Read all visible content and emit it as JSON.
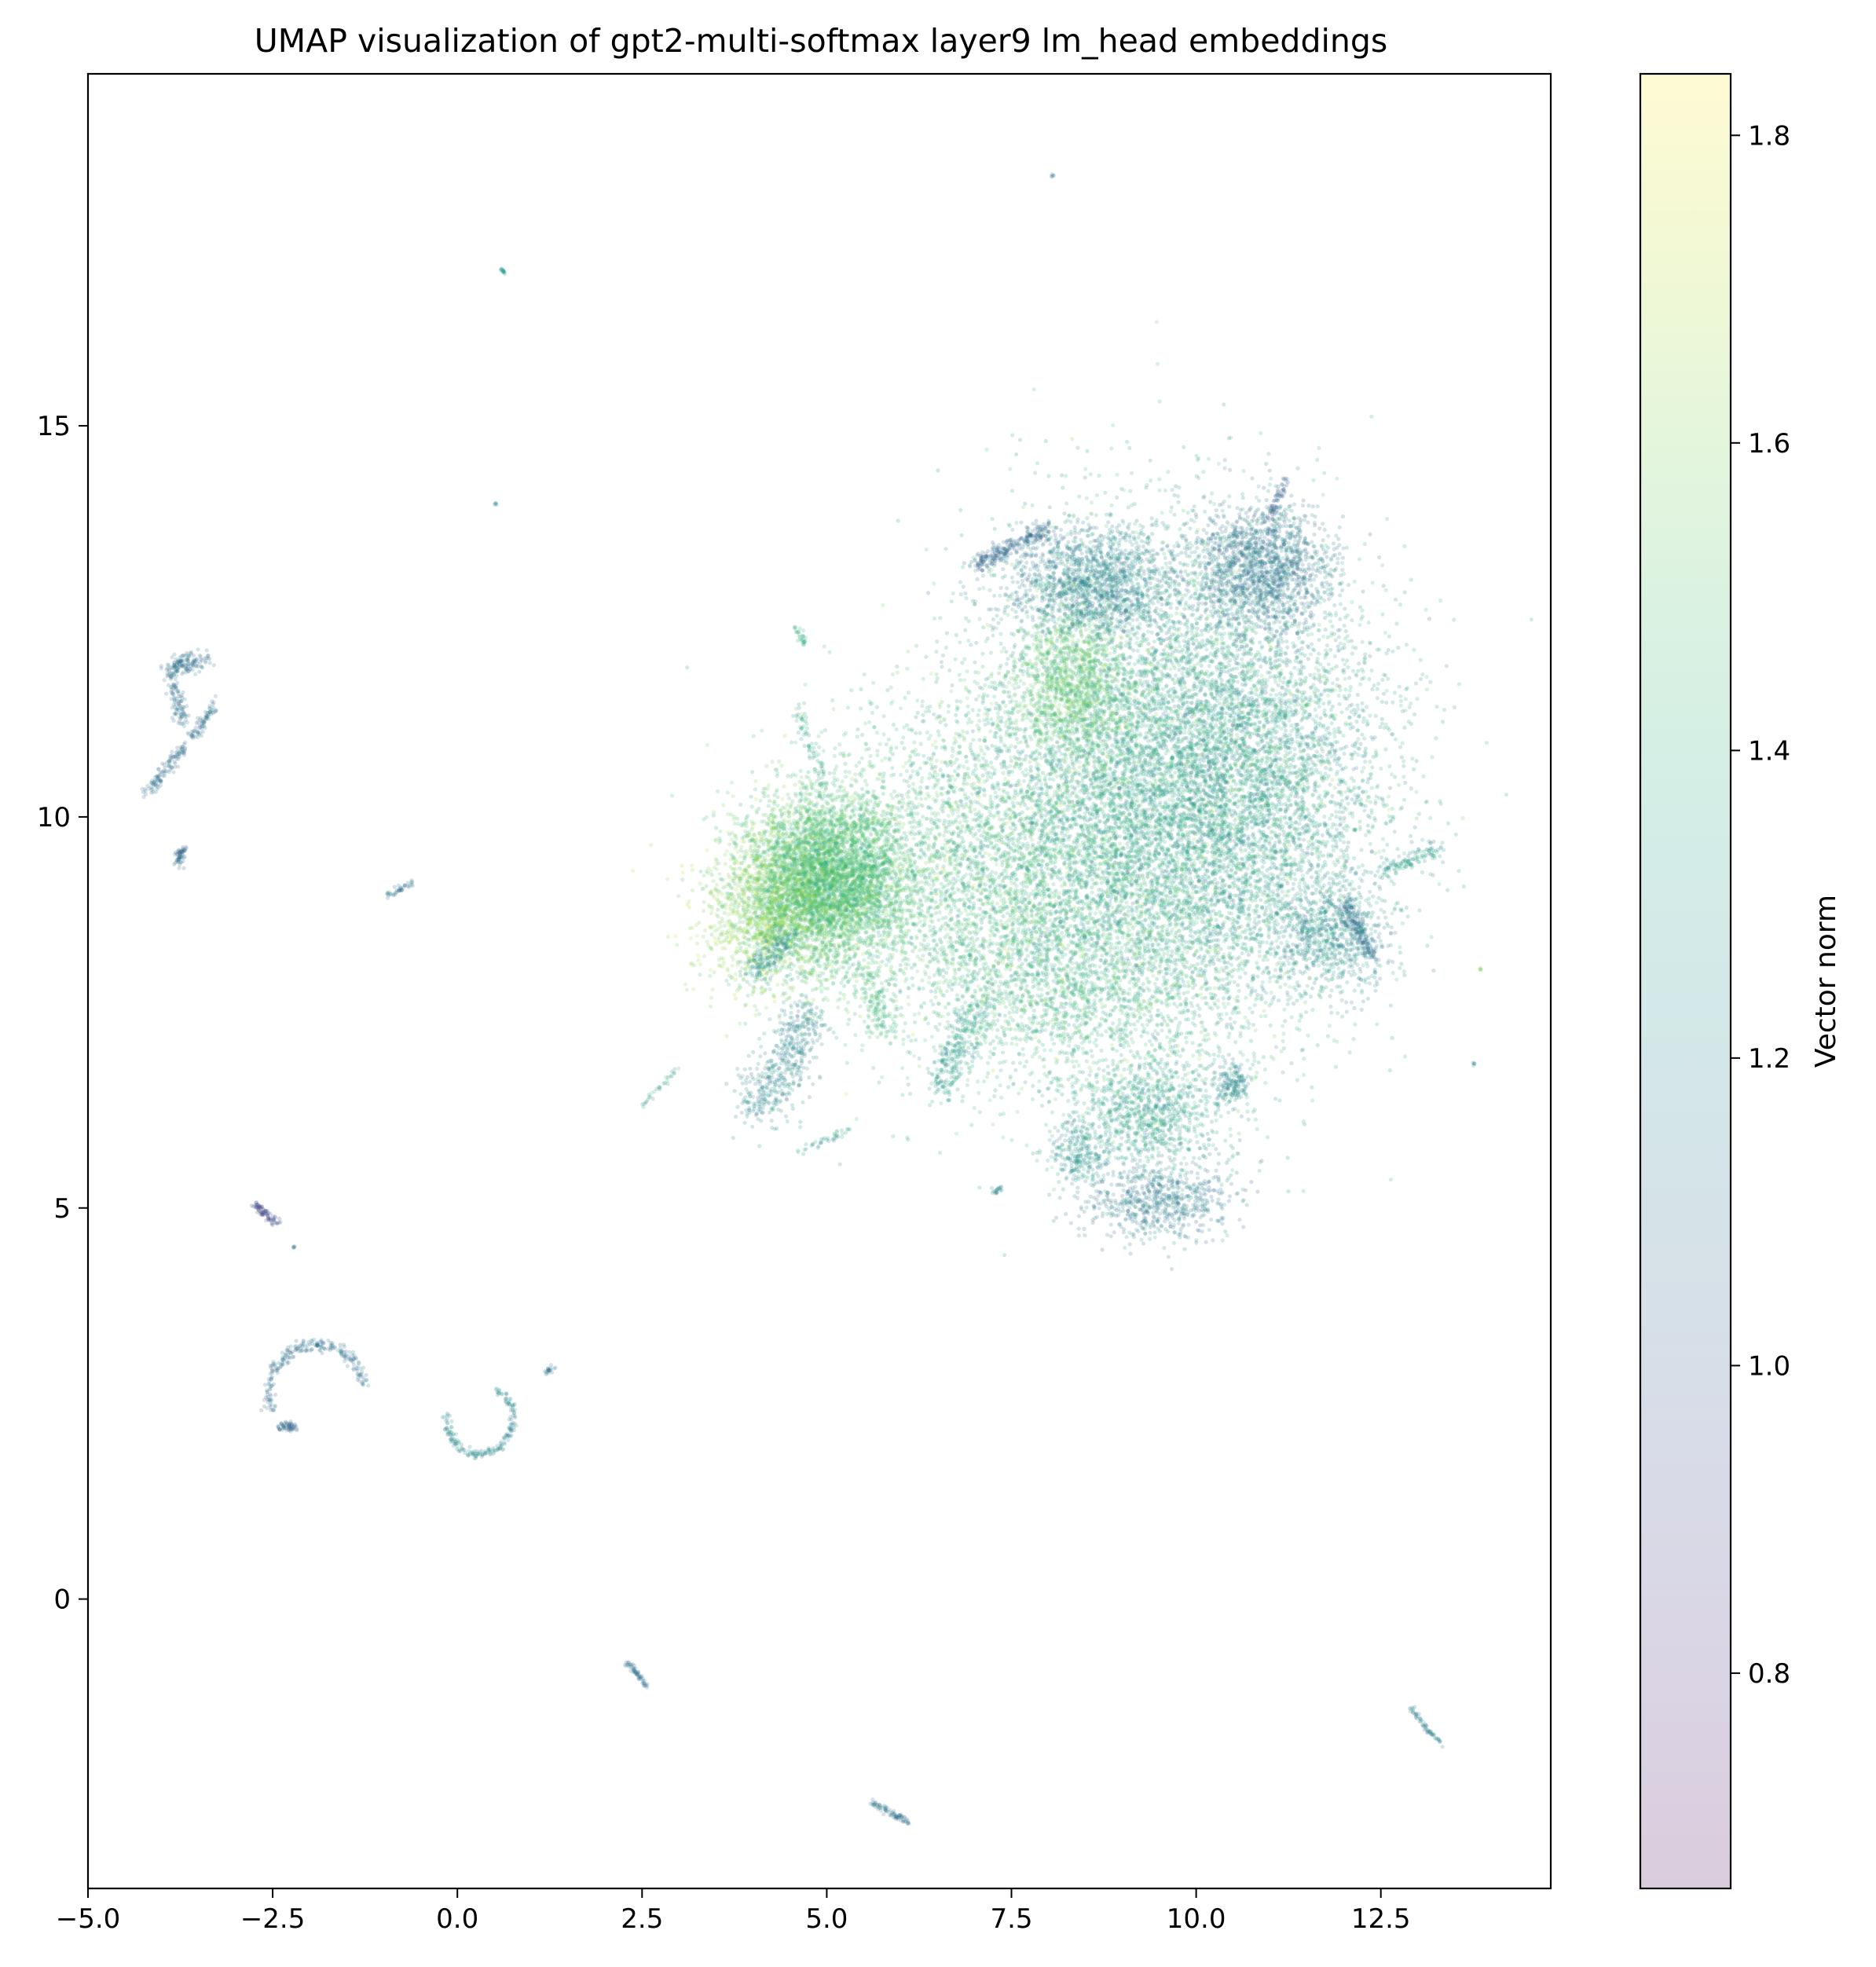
{
  "chart_data": {
    "type": "scatter",
    "title": "UMAP visualization of gpt2-multi-softmax layer9 lm_head embeddings",
    "xlabel": "",
    "ylabel": "",
    "xlim": [
      -5.0,
      14.8
    ],
    "ylim": [
      -3.7,
      19.5
    ],
    "x_ticks": [
      -5.0,
      -2.5,
      0.0,
      2.5,
      5.0,
      7.5,
      10.0,
      12.5
    ],
    "x_tick_labels": [
      "−5.0",
      "−2.5",
      "0.0",
      "2.5",
      "5.0",
      "7.5",
      "10.0",
      "12.5"
    ],
    "y_ticks": [
      0,
      5,
      10,
      15
    ],
    "y_tick_labels": [
      "0",
      "5",
      "10",
      "15"
    ],
    "grid": false,
    "point_alpha": 0.2,
    "colormap": "viridis",
    "colorbar": {
      "label": "Vector norm",
      "range": [
        0.66,
        1.84
      ],
      "ticks": [
        0.8,
        1.0,
        1.2,
        1.4,
        1.6,
        1.8
      ],
      "tick_labels": [
        "0.8",
        "1.0",
        "1.2",
        "1.4",
        "1.6",
        "1.8"
      ],
      "alpha": 0.2
    },
    "clusters": [
      {
        "kind": "blob",
        "cx": 5.0,
        "cy": 9.2,
        "sx": 0.55,
        "sy": 0.55,
        "n": 5000,
        "norm": 1.48,
        "norm_sd": 0.08
      },
      {
        "kind": "blob",
        "cx": 4.2,
        "cy": 8.8,
        "sx": 0.45,
        "sy": 0.55,
        "n": 1200,
        "norm": 1.62,
        "norm_sd": 0.06
      },
      {
        "kind": "blob",
        "cx": 6.8,
        "cy": 9.3,
        "sx": 1.1,
        "sy": 1.0,
        "n": 2500,
        "norm": 1.45,
        "norm_sd": 0.1
      },
      {
        "kind": "blob",
        "cx": 9.3,
        "cy": 10.2,
        "sx": 1.3,
        "sy": 1.6,
        "n": 8000,
        "norm": 1.35,
        "norm_sd": 0.12
      },
      {
        "kind": "blob",
        "cx": 10.6,
        "cy": 10.6,
        "sx": 1.0,
        "sy": 1.3,
        "n": 4000,
        "norm": 1.3,
        "norm_sd": 0.12
      },
      {
        "kind": "blob",
        "cx": 8.3,
        "cy": 11.7,
        "sx": 0.4,
        "sy": 0.5,
        "n": 1200,
        "norm": 1.52,
        "norm_sd": 0.06
      },
      {
        "kind": "blob",
        "cx": 8.6,
        "cy": 13.0,
        "sx": 0.6,
        "sy": 0.35,
        "n": 1500,
        "norm": 1.18,
        "norm_sd": 0.08
      },
      {
        "kind": "blob",
        "cx": 10.9,
        "cy": 13.2,
        "sx": 0.45,
        "sy": 0.4,
        "n": 1500,
        "norm": 1.12,
        "norm_sd": 0.07
      },
      {
        "kind": "blob",
        "cx": 9.4,
        "cy": 6.2,
        "sx": 0.5,
        "sy": 0.35,
        "n": 900,
        "norm": 1.32,
        "norm_sd": 0.1
      },
      {
        "kind": "blob",
        "cx": 9.5,
        "cy": 5.1,
        "sx": 0.5,
        "sy": 0.25,
        "n": 700,
        "norm": 1.15,
        "norm_sd": 0.08
      },
      {
        "kind": "blob",
        "cx": 11.8,
        "cy": 8.5,
        "sx": 0.4,
        "sy": 0.35,
        "n": 700,
        "norm": 1.22,
        "norm_sd": 0.1
      },
      {
        "kind": "blob",
        "cx": 8.4,
        "cy": 5.7,
        "sx": 0.2,
        "sy": 0.2,
        "n": 250,
        "norm": 1.25,
        "norm_sd": 0.08
      },
      {
        "kind": "blob",
        "cx": 10.5,
        "cy": 6.6,
        "sx": 0.12,
        "sy": 0.12,
        "n": 150,
        "norm": 1.2,
        "norm_sd": 0.05
      },
      {
        "kind": "blob",
        "cx": 8.5,
        "cy": 8.0,
        "sx": 1.2,
        "sy": 0.8,
        "n": 2000,
        "norm": 1.42,
        "norm_sd": 0.1
      },
      {
        "kind": "line",
        "x1": 4.8,
        "y1": 7.5,
        "x2": 4.0,
        "y2": 6.2,
        "n": 500,
        "w": 0.18,
        "norm": 1.2,
        "norm_sd": 0.08
      },
      {
        "kind": "line",
        "x1": 4.5,
        "y1": 8.5,
        "x2": 4.0,
        "y2": 8.0,
        "n": 200,
        "w": 0.1,
        "norm": 1.25,
        "norm_sd": 0.08
      },
      {
        "kind": "line",
        "x1": 7.1,
        "y1": 7.6,
        "x2": 6.5,
        "y2": 6.5,
        "n": 300,
        "w": 0.12,
        "norm": 1.3,
        "norm_sd": 0.08
      },
      {
        "kind": "line",
        "x1": 5.6,
        "y1": 7.9,
        "x2": 5.8,
        "y2": 7.2,
        "n": 150,
        "w": 0.12,
        "norm": 1.45,
        "norm_sd": 0.06
      },
      {
        "kind": "line",
        "x1": 12.0,
        "y1": 8.9,
        "x2": 12.4,
        "y2": 8.2,
        "n": 200,
        "w": 0.06,
        "norm": 1.1,
        "norm_sd": 0.06
      },
      {
        "kind": "line",
        "x1": 12.5,
        "y1": 9.3,
        "x2": 13.3,
        "y2": 9.6,
        "n": 120,
        "w": 0.05,
        "norm": 1.3,
        "norm_sd": 0.08
      },
      {
        "kind": "line",
        "x1": 7.0,
        "y1": 13.2,
        "x2": 8.0,
        "y2": 13.7,
        "n": 250,
        "w": 0.06,
        "norm": 1.05,
        "norm_sd": 0.06
      },
      {
        "kind": "line",
        "x1": 11.0,
        "y1": 13.8,
        "x2": 11.2,
        "y2": 14.3,
        "n": 60,
        "w": 0.03,
        "norm": 1.0,
        "norm_sd": 0.05
      },
      {
        "kind": "line",
        "x1": 5.0,
        "y1": 10.3,
        "x2": 4.6,
        "y2": 11.4,
        "n": 80,
        "w": 0.05,
        "norm": 1.35,
        "norm_sd": 0.1
      },
      {
        "kind": "line",
        "x1": 4.6,
        "y1": 5.7,
        "x2": 5.3,
        "y2": 6.0,
        "n": 40,
        "w": 0.03,
        "norm": 1.3,
        "norm_sd": 0.1
      },
      {
        "kind": "line",
        "x1": 2.5,
        "y1": 6.3,
        "x2": 3.0,
        "y2": 6.8,
        "n": 30,
        "w": 0.02,
        "norm": 1.3,
        "norm_sd": 0.1
      },
      {
        "kind": "line",
        "x1": 4.6,
        "y1": 12.4,
        "x2": 4.7,
        "y2": 12.2,
        "n": 30,
        "w": 0.03,
        "norm": 1.4,
        "norm_sd": 0.05
      },
      {
        "kind": "line",
        "x1": -3.9,
        "y1": 11.9,
        "x2": -3.4,
        "y2": 12.0,
        "n": 150,
        "w": 0.06,
        "norm": 1.1,
        "norm_sd": 0.05
      },
      {
        "kind": "line",
        "x1": -3.9,
        "y1": 11.8,
        "x2": -3.7,
        "y2": 11.2,
        "n": 100,
        "w": 0.05,
        "norm": 1.1,
        "norm_sd": 0.05
      },
      {
        "kind": "line",
        "x1": -3.6,
        "y1": 11.0,
        "x2": -3.3,
        "y2": 11.4,
        "n": 80,
        "w": 0.04,
        "norm": 1.1,
        "norm_sd": 0.05
      },
      {
        "kind": "line",
        "x1": -4.2,
        "y1": 10.3,
        "x2": -3.7,
        "y2": 10.9,
        "n": 120,
        "w": 0.04,
        "norm": 1.08,
        "norm_sd": 0.05
      },
      {
        "kind": "line",
        "x1": -3.8,
        "y1": 9.4,
        "x2": -3.7,
        "y2": 9.6,
        "n": 60,
        "w": 0.03,
        "norm": 1.05,
        "norm_sd": 0.04
      },
      {
        "kind": "line",
        "x1": -0.95,
        "y1": 9.0,
        "x2": -0.6,
        "y2": 9.15,
        "n": 40,
        "w": 0.02,
        "norm": 1.1,
        "norm_sd": 0.04
      },
      {
        "kind": "line",
        "x1": -2.75,
        "y1": 5.05,
        "x2": -2.45,
        "y2": 4.8,
        "n": 80,
        "w": 0.025,
        "norm": 0.92,
        "norm_sd": 0.04
      },
      {
        "kind": "arc",
        "cx": -1.9,
        "cy": 2.6,
        "r": 0.65,
        "a1": 200,
        "a2": 10,
        "n": 250,
        "w": 0.04,
        "norm": 1.1,
        "norm_sd": 0.06
      },
      {
        "kind": "line",
        "x1": -2.4,
        "y1": 2.2,
        "x2": -2.2,
        "y2": 2.2,
        "n": 60,
        "w": 0.03,
        "norm": 1.05,
        "norm_sd": 0.04
      },
      {
        "kind": "arc",
        "cx": 0.3,
        "cy": 2.3,
        "r": 0.45,
        "a1": 170,
        "a2": 420,
        "n": 200,
        "w": 0.03,
        "norm": 1.2,
        "norm_sd": 0.08
      },
      {
        "kind": "line",
        "x1": 1.2,
        "y1": 2.9,
        "x2": 1.3,
        "y2": 2.95,
        "n": 20,
        "w": 0.02,
        "norm": 1.1,
        "norm_sd": 0.03
      },
      {
        "kind": "line",
        "x1": 2.3,
        "y1": -0.8,
        "x2": 2.55,
        "y2": -1.1,
        "n": 60,
        "w": 0.02,
        "norm": 1.1,
        "norm_sd": 0.04
      },
      {
        "kind": "line",
        "x1": 5.6,
        "y1": -2.6,
        "x2": 6.1,
        "y2": -2.85,
        "n": 80,
        "w": 0.02,
        "norm": 1.1,
        "norm_sd": 0.04
      },
      {
        "kind": "line",
        "x1": 12.9,
        "y1": -1.4,
        "x2": 13.3,
        "y2": -1.85,
        "n": 60,
        "w": 0.02,
        "norm": 1.15,
        "norm_sd": 0.04
      },
      {
        "kind": "line",
        "x1": 0.6,
        "y1": 17.0,
        "x2": 0.65,
        "y2": 16.95,
        "n": 15,
        "w": 0.01,
        "norm": 1.3,
        "norm_sd": 0.03
      },
      {
        "kind": "line",
        "x1": 8.05,
        "y1": 18.2,
        "x2": 8.05,
        "y2": 18.2,
        "n": 5,
        "w": 0.01,
        "norm": 1.1,
        "norm_sd": 0.02
      },
      {
        "kind": "line",
        "x1": 0.52,
        "y1": 14.0,
        "x2": 0.52,
        "y2": 14.0,
        "n": 5,
        "w": 0.01,
        "norm": 1.2,
        "norm_sd": 0.02
      },
      {
        "kind": "line",
        "x1": -2.2,
        "y1": 4.5,
        "x2": -2.2,
        "y2": 4.5,
        "n": 5,
        "w": 0.01,
        "norm": 1.1,
        "norm_sd": 0.02
      },
      {
        "kind": "line",
        "x1": 13.75,
        "y1": 6.85,
        "x2": 13.75,
        "y2": 6.85,
        "n": 5,
        "w": 0.01,
        "norm": 1.2,
        "norm_sd": 0.02
      },
      {
        "kind": "line",
        "x1": 13.85,
        "y1": 8.05,
        "x2": 13.85,
        "y2": 8.05,
        "n": 5,
        "w": 0.01,
        "norm": 1.6,
        "norm_sd": 0.02
      },
      {
        "kind": "line",
        "x1": 7.25,
        "y1": 5.2,
        "x2": 7.35,
        "y2": 5.25,
        "n": 20,
        "w": 0.02,
        "norm": 1.2,
        "norm_sd": 0.04
      }
    ]
  }
}
